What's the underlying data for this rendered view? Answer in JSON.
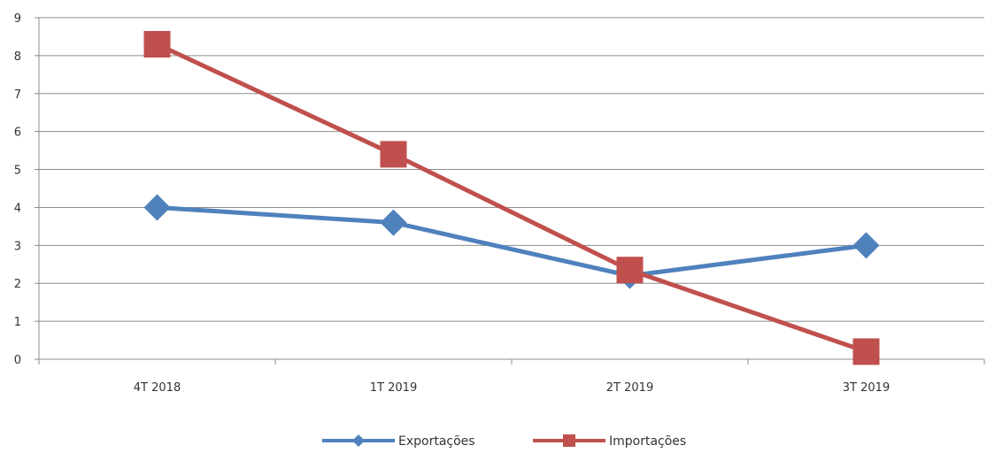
{
  "chart_data": {
    "type": "line",
    "categories": [
      "4T 2018",
      "1T 2019",
      "2T 2019",
      "3T 2019"
    ],
    "series": [
      {
        "name": "Exportações",
        "values": [
          4.0,
          3.6,
          2.2,
          3.0
        ],
        "color": "#4F81BD",
        "marker": "diamond"
      },
      {
        "name": "Importações",
        "values": [
          8.3,
          5.4,
          2.35,
          0.2
        ],
        "color": "#C0504D",
        "marker": "square"
      }
    ],
    "ylim": [
      0,
      9
    ],
    "yticks": [
      "0",
      "1",
      "2",
      "3",
      "4",
      "5",
      "6",
      "7",
      "8",
      "9"
    ],
    "grid": true,
    "legend": "bottom"
  }
}
